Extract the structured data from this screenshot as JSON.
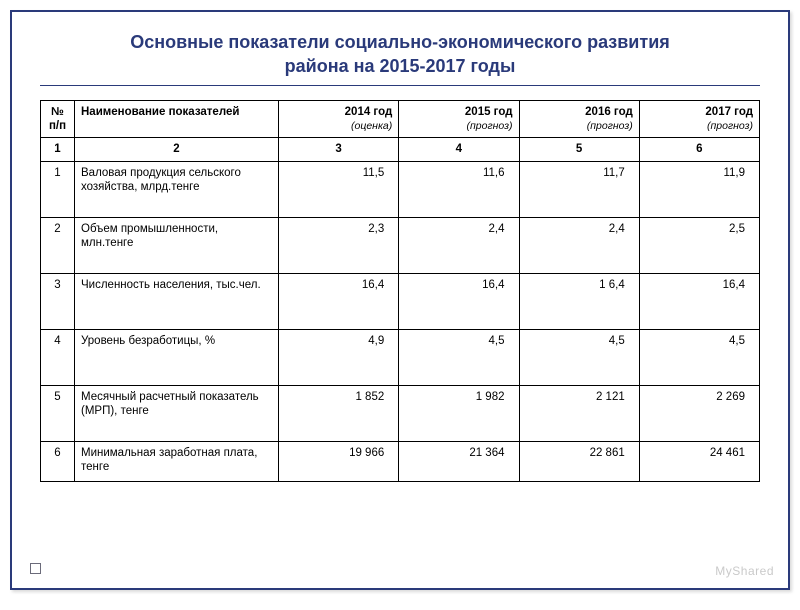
{
  "title_line1": "Основные показатели социально-экономического развития",
  "title_line2": "района  на 2015-2017 годы",
  "table": {
    "header": {
      "c0": "№ п/п",
      "c1": "Наименование показателей",
      "c2_top": "2014 год",
      "c2_sub": "(оценка)",
      "c3_top": "2015 год",
      "c3_sub": "(прогноз)",
      "c4_top": "2016 год",
      "c4_sub": "(прогноз)",
      "c5_top": "2017 год",
      "c5_sub": "(прогноз)"
    },
    "numrow": {
      "c0": "1",
      "c1": "2",
      "c2": "3",
      "c3": "4",
      "c4": "5",
      "c5": "6"
    },
    "rows": [
      {
        "n": "1",
        "name": "Валовая продукция сельского хозяйства, млрд.тенге",
        "v": [
          "11,5",
          "11,6",
          "11,7",
          "11,9"
        ]
      },
      {
        "n": "2",
        "name": "Объем промышленности, млн.тенге",
        "v": [
          "2,3",
          "2,4",
          "2,4",
          "2,5"
        ]
      },
      {
        "n": "3",
        "name": "Численность населения, тыс.чел.",
        "v": [
          "16,4",
          "16,4",
          "1 6,4",
          "16,4"
        ]
      },
      {
        "n": "4",
        "name": "Уровень безработицы, %",
        "v": [
          "4,9",
          "4,5",
          "4,5",
          "4,5"
        ]
      },
      {
        "n": "5",
        "name": "Месячный расчетный показатель (МРП), тенге",
        "v": [
          "1 852",
          "1 982",
          "2 121",
          "2 269"
        ]
      },
      {
        "n": "6",
        "name": "Минимальная заработная плата, тенге",
        "v": [
          "19 966",
          "21 364",
          "22 861",
          "24 461"
        ]
      }
    ]
  },
  "watermark": "MyShared",
  "colors": {
    "title_color": "#2a3a7a",
    "border_color": "#000000",
    "frame_color": "#2a3a7a",
    "background": "#ffffff"
  }
}
